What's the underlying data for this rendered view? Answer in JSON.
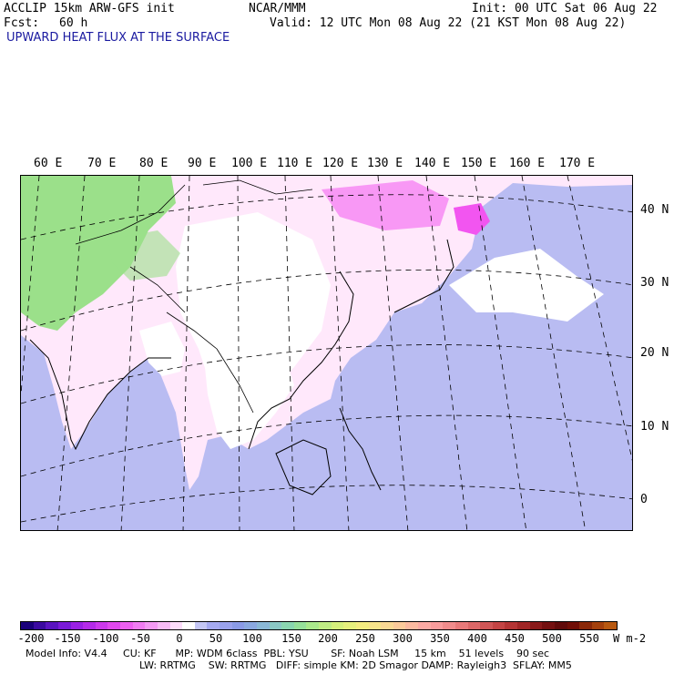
{
  "header": {
    "model_title": "ACCLIP 15km ARW-GFS init",
    "center": "NCAR/MMM",
    "init": "Init: 00 UTC Sat 06 Aug 22",
    "fcst_label": "Fcst:",
    "fcst_value": "60 h",
    "valid": "Valid: 12 UTC Mon 08 Aug 22 (21 KST Mon 08 Aug 22)",
    "field_name": "UPWARD HEAT FLUX AT THE SURFACE"
  },
  "map": {
    "longitude_labels": [
      "60 E",
      "70 E",
      "80 E",
      "90 E",
      "100 E",
      "110 E",
      "120 E",
      "130 E",
      "140 E",
      "150 E",
      "160 E",
      "170 E"
    ],
    "latitude_labels": [
      "40 N",
      "30 N",
      "20 N",
      "10 N",
      "0"
    ],
    "colors": {
      "ocean": "#b9bcf2",
      "land_low": "#ffe8fb",
      "neutral": "#ffffff",
      "high_positive": "#9be08a",
      "strong_negative": "#f255f0"
    }
  },
  "colorbar": {
    "labels": [
      "-200",
      "-150",
      "-100",
      "-50",
      "0",
      "50",
      "100",
      "150",
      "200",
      "250",
      "300",
      "350",
      "400",
      "450",
      "500",
      "550"
    ],
    "units": "W m-2",
    "colors": [
      "#1a007a",
      "#3b0aa0",
      "#5a14c0",
      "#7a1ad8",
      "#9a20e4",
      "#b42ae8",
      "#cc38ec",
      "#e048ee",
      "#ec60f0",
      "#f07cf2",
      "#f49af4",
      "#f8bcf6",
      "#fcdcfa",
      "#ffffff",
      "#c4c6f4",
      "#a6aaf0",
      "#9aa2ec",
      "#8a9ae6",
      "#8aa8e0",
      "#8ab8d6",
      "#8ac8c4",
      "#8ad6b0",
      "#96e09a",
      "#aae88c",
      "#c0ec84",
      "#d6f07c",
      "#e6f07c",
      "#f4ec80",
      "#f8e48a",
      "#fad894",
      "#fcca9a",
      "#fcbaa0",
      "#fcaaa4",
      "#f89c9c",
      "#f08c8c",
      "#e87a7a",
      "#dc6868",
      "#d05656",
      "#c44444",
      "#b43434",
      "#a02626",
      "#8a1a1a",
      "#741010",
      "#600a0a",
      "#700e06",
      "#8a2808",
      "#a4400c",
      "#b85810"
    ]
  },
  "footer": {
    "line1": "Model Info: V4.4     CU: KF      MP: WDM 6class  PBL: YSU       SF: Noah LSM     15 km    51 levels    90 sec",
    "line2": "LW: RRTMG    SW: RRTMG   DIFF: simple KM: 2D Smagor DAMP: Rayleigh3  SFLAY: MM5"
  }
}
